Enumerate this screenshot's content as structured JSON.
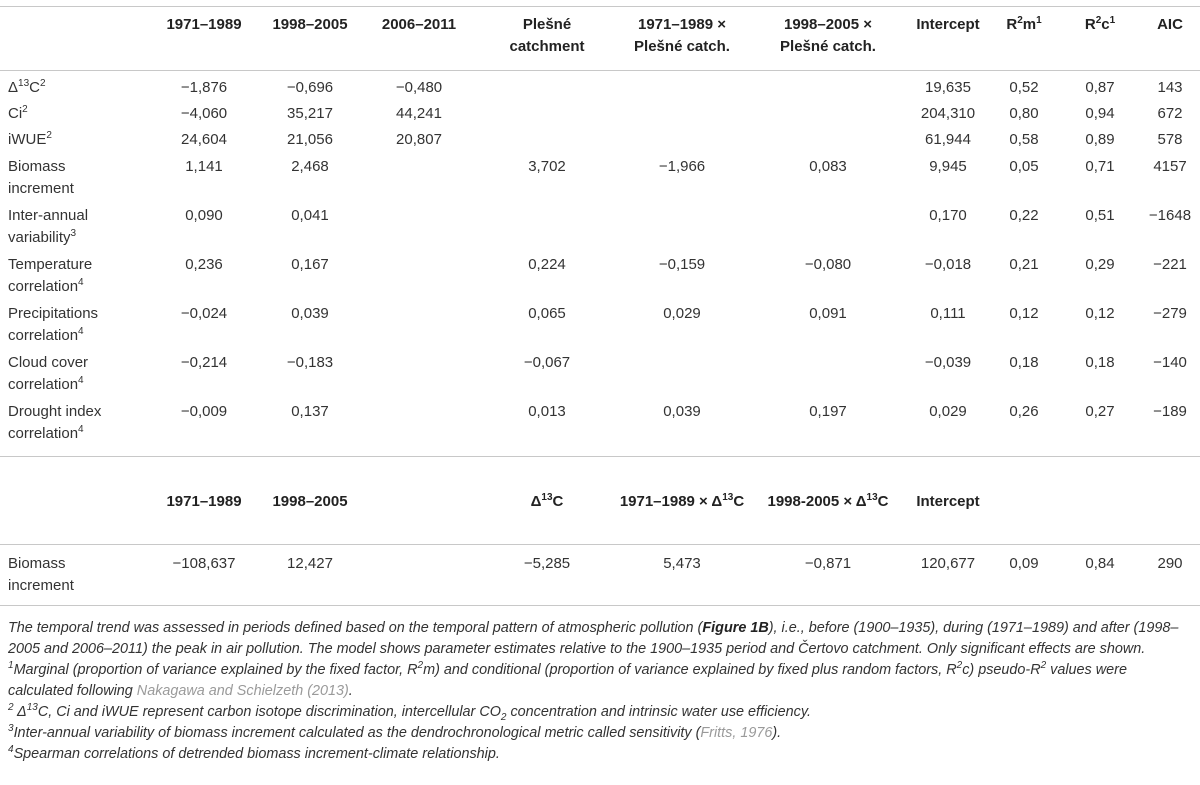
{
  "table1": {
    "header": [
      null,
      [
        {
          "b": "1971–1989"
        }
      ],
      [
        {
          "b": "1998–2005"
        }
      ],
      [
        {
          "b": "2006–2011"
        }
      ],
      [
        {
          "b": "Plešné catchment"
        }
      ],
      [
        {
          "b": "1971–1989 × Plešné catch."
        }
      ],
      [
        {
          "b": "1998–2005 × Plešné catch."
        }
      ],
      [
        {
          "b": "Intercept"
        }
      ],
      [
        {
          "b": "R"
        },
        {
          "bsup": "2"
        },
        {
          "b": "m"
        },
        {
          "bsup": "1"
        }
      ],
      [
        {
          "b": "R"
        },
        {
          "bsup": "2"
        },
        {
          "b": "c"
        },
        {
          "bsup": "1"
        }
      ],
      [
        {
          "b": "AIC"
        }
      ]
    ],
    "rows": [
      [
        [
          "Δ",
          {
            "sup": "13"
          },
          "C",
          {
            "sup": "2"
          }
        ],
        "−1,876",
        "−0,696",
        "−0,480",
        null,
        null,
        null,
        "19,635",
        "0,52",
        "0,87",
        "143"
      ],
      [
        [
          "Ci",
          {
            "sup": "2"
          }
        ],
        "−4,060",
        "35,217",
        "44,241",
        null,
        null,
        null,
        "204,310",
        "0,80",
        "0,94",
        "672"
      ],
      [
        [
          "iWUE",
          {
            "sup": "2"
          }
        ],
        "24,604",
        "21,056",
        "20,807",
        null,
        null,
        null,
        "61,944",
        "0,58",
        "0,89",
        "578"
      ],
      [
        [
          "Biomass increment"
        ],
        "1,141",
        "2,468",
        null,
        "3,702",
        "−1,966",
        "0,083",
        "9,945",
        "0,05",
        "0,71",
        "4157"
      ],
      [
        [
          "Inter-annual variability",
          {
            "sup": "3"
          }
        ],
        "0,090",
        "0,041",
        null,
        null,
        null,
        null,
        "0,170",
        "0,22",
        "0,51",
        "−1648"
      ],
      [
        [
          "Temperature correlation",
          {
            "sup": "4"
          }
        ],
        "0,236",
        "0,167",
        null,
        "0,224",
        "−0,159",
        "−0,080",
        "−0,018",
        "0,21",
        "0,29",
        "−221"
      ],
      [
        [
          "Precipitations correlation",
          {
            "sup": "4"
          }
        ],
        "−0,024",
        "0,039",
        null,
        "0,065",
        "0,029",
        "0,091",
        "0,111",
        "0,12",
        "0,12",
        "−279"
      ],
      [
        [
          "Cloud cover correlation",
          {
            "sup": "4"
          }
        ],
        "−0,214",
        "−0,183",
        null,
        "−0,067",
        null,
        null,
        "−0,039",
        "0,18",
        "0,18",
        "−140"
      ],
      [
        [
          "Drought index correlation",
          {
            "sup": "4"
          }
        ],
        "−0,009",
        "0,137",
        null,
        "0,013",
        "0,039",
        "0,197",
        "0,029",
        "0,26",
        "0,27",
        "−189"
      ]
    ]
  },
  "table2": {
    "header": [
      null,
      [
        {
          "b": "1971–1989"
        }
      ],
      [
        {
          "b": "1998–2005"
        }
      ],
      null,
      [
        {
          "b": "Δ"
        },
        {
          "bsup": "13"
        },
        {
          "b": "C"
        }
      ],
      [
        {
          "b": "1971–1989 × Δ"
        },
        {
          "bsup": "13"
        },
        {
          "b": "C"
        }
      ],
      [
        {
          "b": "1998-2005 × Δ"
        },
        {
          "bsup": "13"
        },
        {
          "b": "C"
        }
      ],
      [
        {
          "b": "Intercept"
        }
      ],
      null,
      null,
      null
    ],
    "rows": [
      [
        [
          "Biomass increment"
        ],
        "−108,637",
        "12,427",
        null,
        "−5,285",
        "5,473",
        "−0,871",
        "120,677",
        "0,09",
        "0,84",
        "290"
      ]
    ]
  },
  "notes": [
    [
      "The temporal trend was assessed in periods defined based on the temporal pattern of atmospheric pollution (",
      {
        "b": "Figure 1B"
      },
      "), i.e., before (1900–1935), during (1971–1989) and after (1998–2005 and 2006–2011) the peak in air pollution. The model shows parameter estimates relative to the 1900–1935 period and Čertovo catchment. Only significant effects are shown."
    ],
    [
      {
        "sup": "1"
      },
      "Marginal (proportion of variance explained by the fixed factor, R",
      {
        "sup": "2"
      },
      "m) and conditional (proportion of variance explained by fixed plus random factors, R",
      {
        "sup": "2"
      },
      "c) pseudo-R",
      {
        "sup": "2"
      },
      " values were calculated following ",
      {
        "link": "Nakagawa and Schielzeth (2013)"
      },
      "."
    ],
    [
      {
        "sup": "2"
      },
      " Δ",
      {
        "sup": "13"
      },
      "C, Ci and iWUE represent carbon isotope discrimination, intercellular CO",
      {
        "sub": "2"
      },
      " concentration and intrinsic water use efficiency."
    ],
    [
      {
        "sup": "3"
      },
      "Inter-annual variability of biomass increment calculated as the dendrochronological metric called sensitivity (",
      {
        "link": "Fritts, 1976"
      },
      ")."
    ],
    [
      {
        "sup": "4"
      },
      "Spearman correlations of detrended biomass increment-climate relationship."
    ]
  ]
}
